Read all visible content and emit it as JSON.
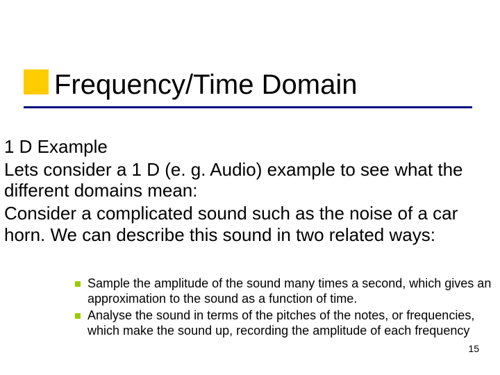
{
  "accent_color": "#ffcc00",
  "rule_color": "#000080",
  "bullet_color": "#99cc00",
  "title": "Frequency/Time Domain",
  "body": {
    "p1": "1 D Example",
    "p2": "Lets consider a 1 D (e. g. Audio) example to see what the different domains mean:",
    "p3": "Consider a complicated sound such as the noise of a car horn. We can describe this sound in two related ways:"
  },
  "bullets": [
    " Sample the amplitude of the sound many times a second, which gives an approximation to the sound as a function of time.",
    " Analyse the sound in terms of the pitches of the notes, or frequencies, which make the sound up, recording the amplitude of each frequency"
  ],
  "page_number": "15"
}
